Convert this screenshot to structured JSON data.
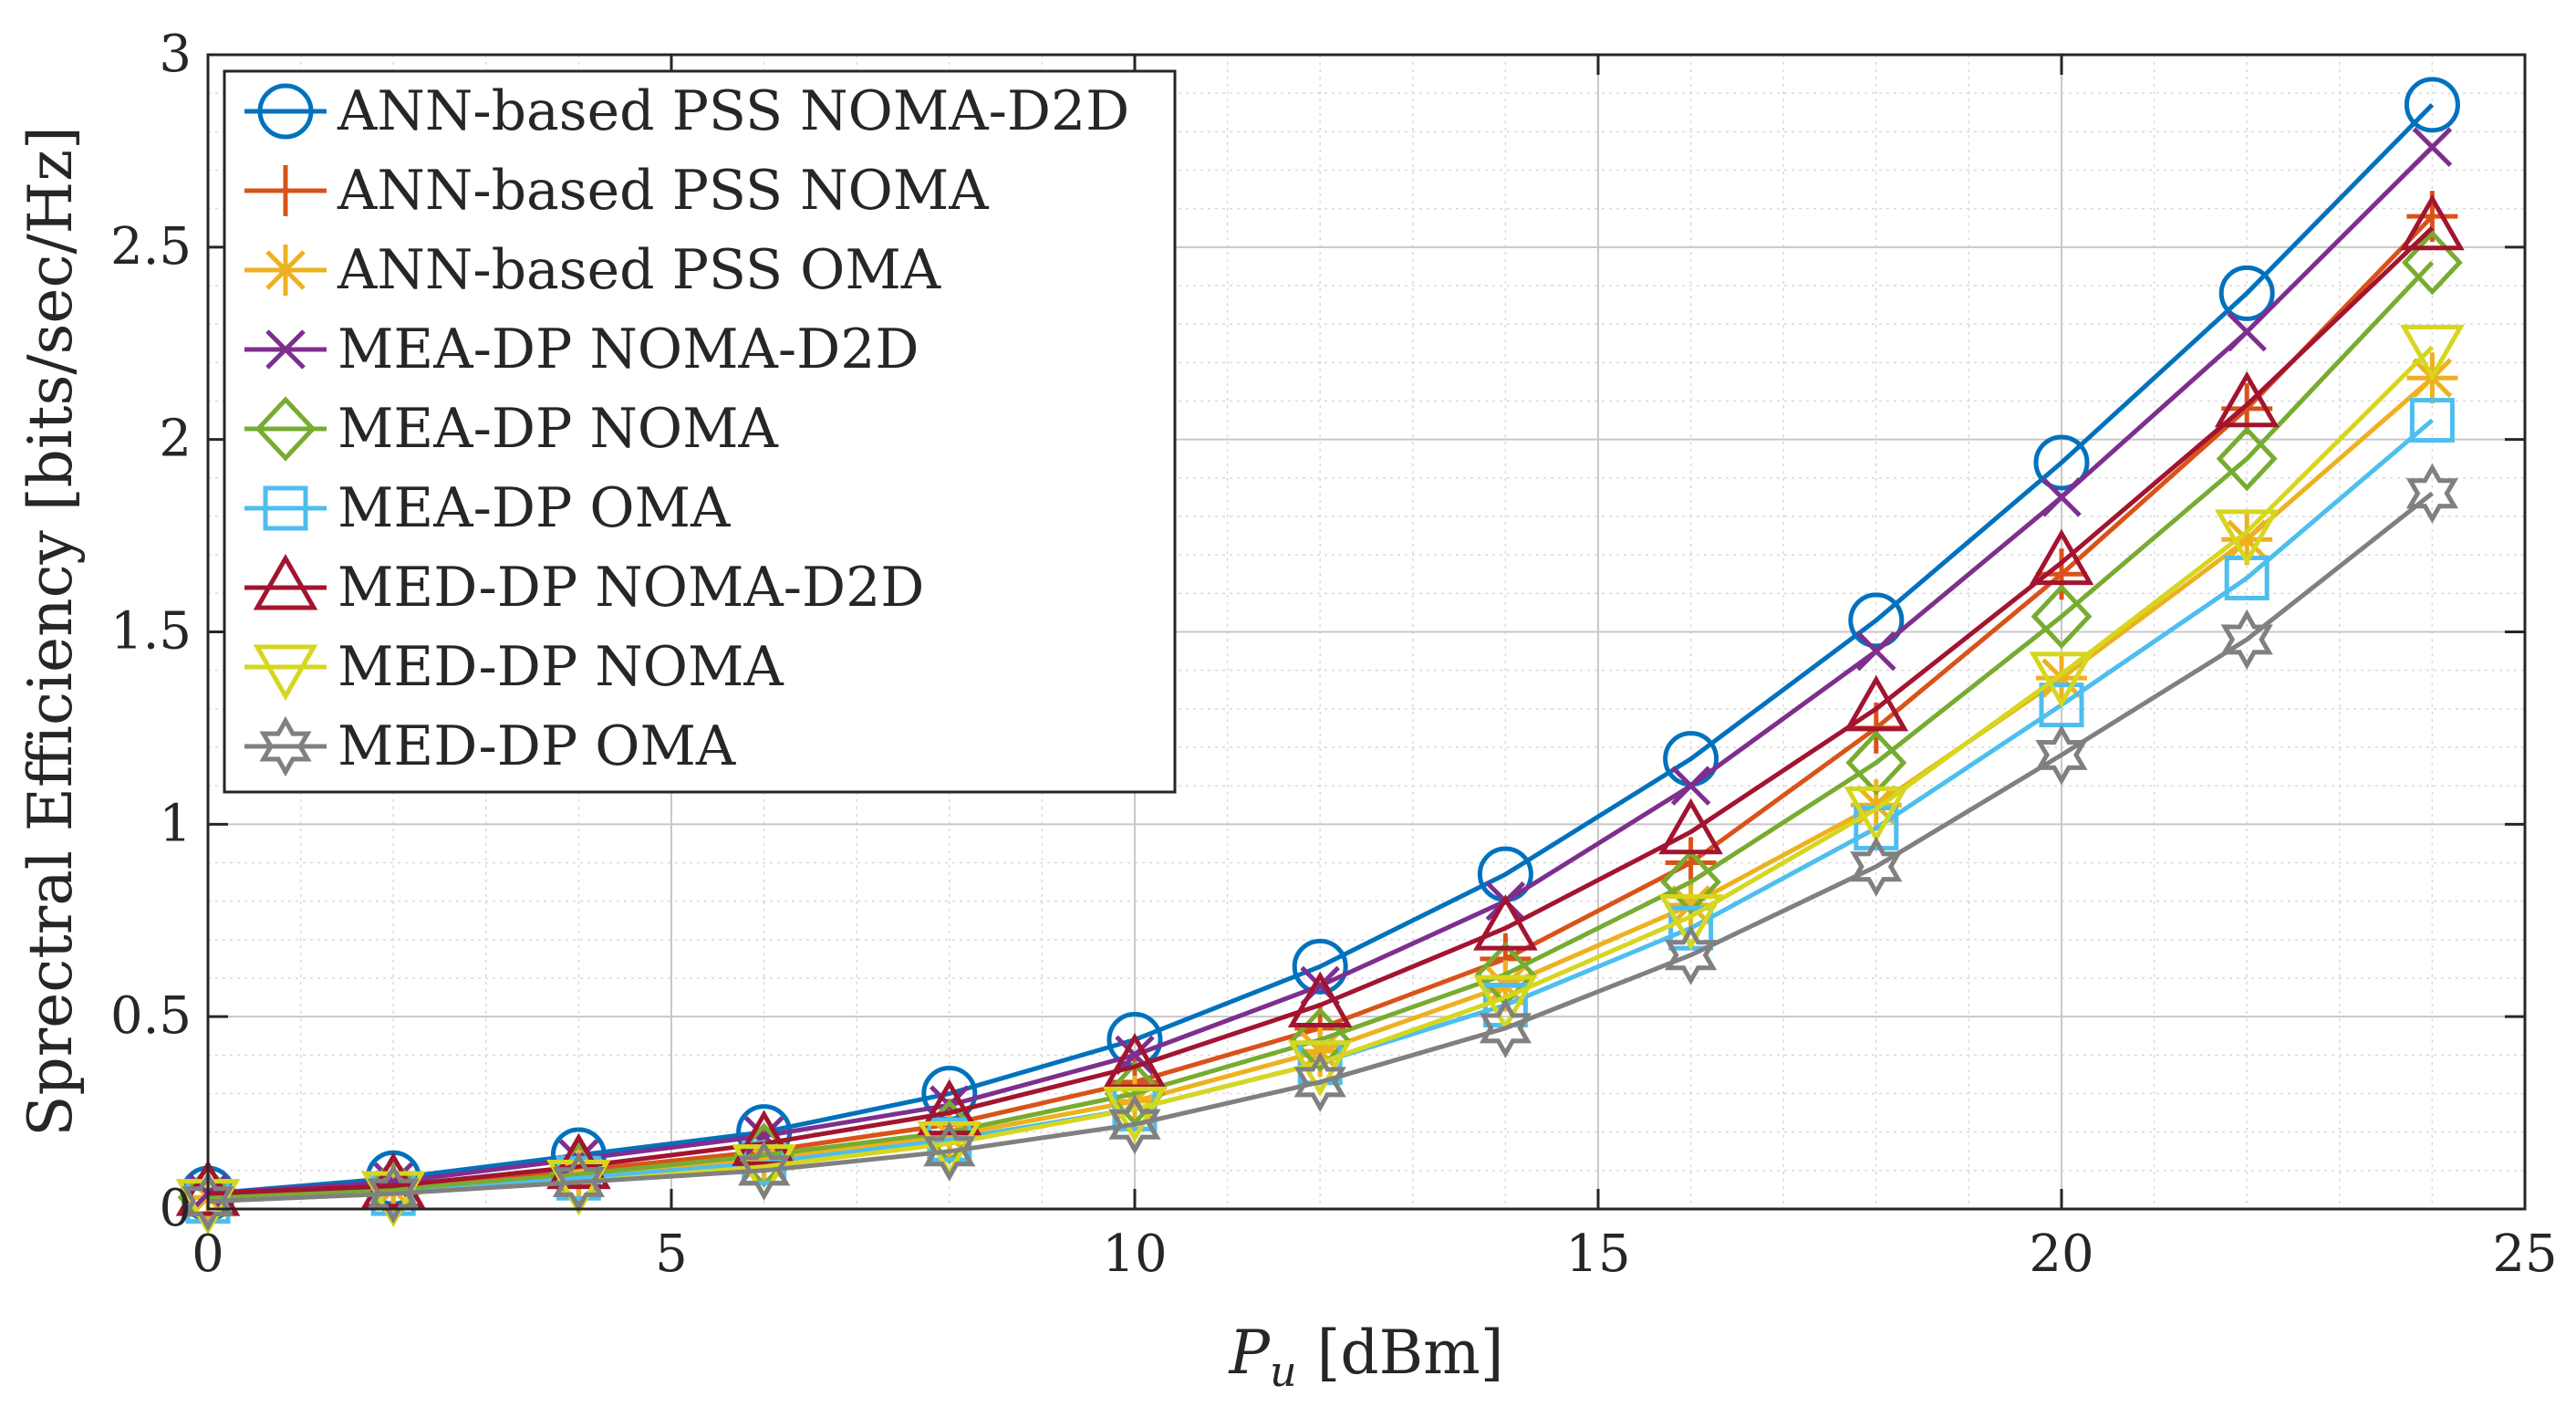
{
  "chart_data": {
    "type": "line",
    "title": "",
    "xlabel_symbol": "P",
    "xlabel_subscript": "u",
    "xlabel_unit": "[dBm]",
    "ylabel": "Sprectral Efficiency [bits/sec/Hz]",
    "xlim": [
      0,
      25
    ],
    "ylim": [
      0,
      3
    ],
    "xticks": [
      0,
      5,
      10,
      15,
      20,
      25
    ],
    "yticks": [
      0,
      0.5,
      1,
      1.5,
      2,
      2.5,
      3
    ],
    "xtick_labels": [
      "0",
      "5",
      "10",
      "15",
      "20",
      "25"
    ],
    "ytick_labels": [
      "0",
      "0.5",
      "1",
      "1.5",
      "2",
      "2.5",
      "3"
    ],
    "grid": true,
    "minor_grid": true,
    "legend_position": "top-left",
    "x": [
      0,
      2,
      4,
      6,
      8,
      10,
      12,
      14,
      16,
      18,
      20,
      22,
      24
    ],
    "series": [
      {
        "name": "ANN-based PSS NOMA-D2D",
        "marker": "circle",
        "color": "#0072BD",
        "values": [
          0.04,
          0.08,
          0.14,
          0.2,
          0.3,
          0.44,
          0.63,
          0.87,
          1.17,
          1.53,
          1.94,
          2.38,
          2.87
        ]
      },
      {
        "name": "ANN-based PSS NOMA",
        "marker": "plus",
        "color": "#D95319",
        "values": [
          0.03,
          0.06,
          0.1,
          0.15,
          0.22,
          0.33,
          0.47,
          0.65,
          0.9,
          1.25,
          1.65,
          2.08,
          2.58
        ]
      },
      {
        "name": "ANN-based PSS OMA",
        "marker": "asterisk",
        "color": "#EDB120",
        "values": [
          0.03,
          0.05,
          0.09,
          0.13,
          0.19,
          0.28,
          0.41,
          0.58,
          0.79,
          1.05,
          1.38,
          1.74,
          2.16
        ]
      },
      {
        "name": "MEA-DP NOMA-D2D",
        "marker": "cross",
        "color": "#7E2F8E",
        "values": [
          0.04,
          0.07,
          0.13,
          0.19,
          0.27,
          0.4,
          0.58,
          0.8,
          1.1,
          1.45,
          1.85,
          2.28,
          2.76
        ]
      },
      {
        "name": "MEA-DP NOMA",
        "marker": "diamond",
        "color": "#77AC30",
        "values": [
          0.03,
          0.05,
          0.09,
          0.14,
          0.2,
          0.3,
          0.44,
          0.61,
          0.85,
          1.16,
          1.54,
          1.95,
          2.46
        ]
      },
      {
        "name": "MEA-DP OMA",
        "marker": "square",
        "color": "#4DBEEE",
        "values": [
          0.02,
          0.04,
          0.08,
          0.12,
          0.18,
          0.26,
          0.38,
          0.53,
          0.73,
          0.99,
          1.31,
          1.64,
          2.05
        ]
      },
      {
        "name": "MED-DP NOMA-D2D",
        "marker": "triangle-up",
        "color": "#A2142F",
        "values": [
          0.04,
          0.06,
          0.11,
          0.17,
          0.25,
          0.37,
          0.53,
          0.73,
          0.98,
          1.3,
          1.68,
          2.09,
          2.55
        ]
      },
      {
        "name": "MED-DP NOMA",
        "marker": "triangle-down",
        "color": "#D6D61F",
        "values": [
          0.02,
          0.04,
          0.07,
          0.11,
          0.17,
          0.26,
          0.38,
          0.55,
          0.76,
          1.04,
          1.39,
          1.76,
          2.24
        ]
      },
      {
        "name": "MED-DP OMA",
        "marker": "hexagram",
        "color": "#808080",
        "values": [
          0.02,
          0.04,
          0.07,
          0.1,
          0.15,
          0.22,
          0.33,
          0.47,
          0.66,
          0.89,
          1.18,
          1.48,
          1.86
        ]
      }
    ]
  }
}
